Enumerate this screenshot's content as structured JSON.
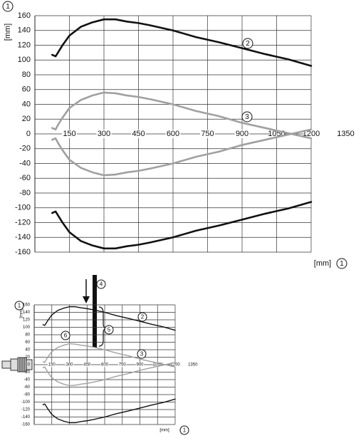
{
  "chart_data": [
    {
      "type": "line",
      "y_label": "[mm]",
      "x_label": "[mm]",
      "annotations": [
        "1",
        "2",
        "3",
        "1"
      ],
      "xlim": [
        0,
        1200
      ],
      "ylim": [
        -160,
        160
      ],
      "xticks": [
        150,
        300,
        450,
        600,
        750,
        900,
        1050,
        1200,
        1350
      ],
      "yticks": [
        -160,
        -140,
        -120,
        -100,
        -80,
        -60,
        -40,
        -20,
        0,
        20,
        40,
        60,
        80,
        100,
        120,
        140,
        160
      ],
      "grid": true,
      "x": [
        75,
        90,
        100,
        120,
        150,
        200,
        250,
        300,
        350,
        400,
        450,
        500,
        600,
        700,
        800,
        900,
        1000,
        1100,
        1200
      ],
      "series": [
        {
          "color": "#111111",
          "values": [
            107,
            105,
            110,
            120,
            133,
            145,
            151,
            155,
            155,
            152,
            150,
            147,
            140,
            131,
            124,
            116,
            108,
            101,
            92
          ]
        },
        {
          "color": "#111111",
          "values": [
            -107,
            -105,
            -110,
            -120,
            -133,
            -145,
            -151,
            -155,
            -155,
            -152,
            -150,
            -147,
            -140,
            -131,
            -124,
            -116,
            -108,
            -101,
            -92
          ]
        },
        {
          "color": "#a0a0a0",
          "values": [
            8,
            6,
            12,
            22,
            35,
            46,
            52,
            56,
            55,
            52,
            50,
            47,
            40,
            31,
            24,
            15,
            8,
            1,
            -6
          ]
        },
        {
          "color": "#a0a0a0",
          "values": [
            -8,
            -6,
            -12,
            -22,
            -35,
            -46,
            -52,
            -56,
            -55,
            -52,
            -50,
            -47,
            -40,
            -31,
            -24,
            -15,
            -8,
            -1,
            6
          ]
        }
      ]
    },
    {
      "type": "line",
      "y_label": "[mm]",
      "x_label": "[mm]",
      "annotations": [
        "1",
        "2",
        "3",
        "1",
        "4",
        "5",
        "6"
      ],
      "xlim": [
        0,
        1200
      ],
      "ylim": [
        -160,
        160
      ],
      "xticks": [
        150,
        300,
        450,
        600,
        750,
        900,
        1050,
        1200,
        1350
      ],
      "yticks": [
        -160,
        -140,
        -120,
        -100,
        -80,
        -60,
        -40,
        -20,
        0,
        20,
        40,
        60,
        80,
        100,
        120,
        140,
        160
      ],
      "grid": true,
      "x": [
        75,
        90,
        100,
        120,
        150,
        200,
        250,
        300,
        350,
        400,
        450,
        500,
        600,
        700,
        800,
        900,
        1000,
        1100,
        1200
      ],
      "series": [
        {
          "color": "#111111",
          "values": [
            107,
            105,
            110,
            120,
            133,
            145,
            151,
            155,
            155,
            152,
            150,
            147,
            140,
            131,
            124,
            116,
            108,
            101,
            92
          ]
        },
        {
          "color": "#111111",
          "values": [
            -107,
            -105,
            -110,
            -120,
            -133,
            -145,
            -151,
            -155,
            -155,
            -152,
            -150,
            -147,
            -140,
            -131,
            -124,
            -116,
            -108,
            -101,
            -92
          ]
        },
        {
          "color": "#a0a0a0",
          "values": [
            8,
            6,
            12,
            22,
            35,
            46,
            52,
            56,
            55,
            52,
            50,
            47,
            40,
            31,
            24,
            15,
            8,
            1,
            -6
          ]
        },
        {
          "color": "#a0a0a0",
          "values": [
            -8,
            -6,
            -12,
            -22,
            -35,
            -46,
            -52,
            -56,
            -55,
            -52,
            -50,
            -47,
            -40,
            -31,
            -24,
            -15,
            -8,
            -1,
            6
          ]
        }
      ]
    }
  ]
}
